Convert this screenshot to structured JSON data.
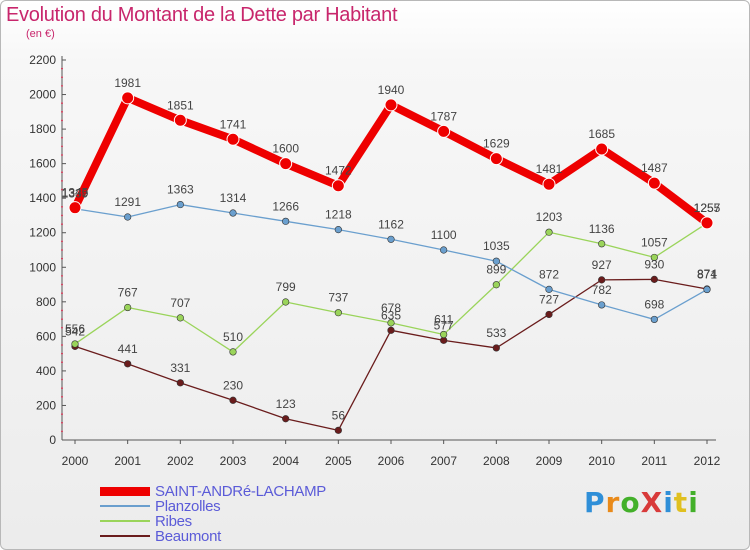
{
  "title": "Evolution du Montant de la Dette par Habitant",
  "unit_label": "(en €)",
  "logo": {
    "text": "ProXiti",
    "colors": [
      "#2f8fd8",
      "#e98a1a",
      "#43b02a",
      "#d83a3a",
      "#2f8fd8",
      "#e0c020",
      "#43b02a"
    ]
  },
  "chart_data": {
    "type": "line",
    "title": "Evolution du Montant de la Dette par Habitant",
    "ylabel": "(en €)",
    "x": [
      "2000",
      "2001",
      "2002",
      "2003",
      "2004",
      "2005",
      "2006",
      "2007",
      "2008",
      "2009",
      "2010",
      "2011",
      "2012"
    ],
    "ylim": [
      0,
      2200
    ],
    "yticks": [
      0,
      200,
      400,
      600,
      800,
      1000,
      1200,
      1400,
      1600,
      1800,
      2000,
      2200
    ],
    "grid": false,
    "legend_position": "bottom-left",
    "series": [
      {
        "name": "SAINT-ANDRé-LACHAMP",
        "color": "#ee0000",
        "values": [
          1345,
          1981,
          1851,
          1741,
          1600,
          1472,
          1940,
          1787,
          1629,
          1481,
          1685,
          1487,
          1257
        ]
      },
      {
        "name": "Planzolles",
        "color": "#6a9fce",
        "values": [
          1339,
          1291,
          1363,
          1314,
          1266,
          1218,
          1162,
          1100,
          1035,
          872,
          782,
          698,
          871
        ]
      },
      {
        "name": "Ribes",
        "color": "#9ad45a",
        "values": [
          556,
          767,
          707,
          510,
          799,
          737,
          678,
          611,
          899,
          1203,
          1136,
          1057,
          1255
        ]
      },
      {
        "name": "Beaumont",
        "color": "#6a1c1c",
        "values": [
          542,
          441,
          331,
          230,
          123,
          56,
          635,
          577,
          533,
          727,
          927,
          930,
          874
        ]
      }
    ]
  }
}
